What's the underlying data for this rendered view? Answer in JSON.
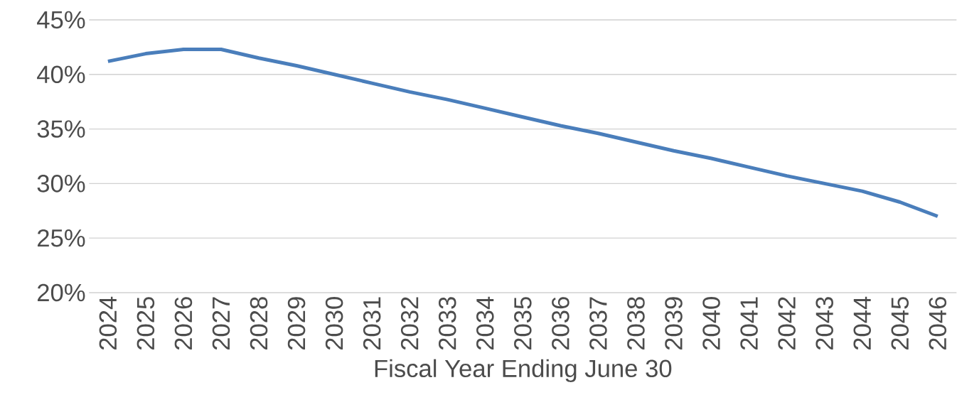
{
  "chart_data": {
    "type": "line",
    "xlabel": "Fiscal Year Ending June 30",
    "categories": [
      "2024",
      "2025",
      "2026",
      "2027",
      "2028",
      "2029",
      "2030",
      "2031",
      "2032",
      "2033",
      "2034",
      "2035",
      "2036",
      "2037",
      "2038",
      "2039",
      "2040",
      "2041",
      "2042",
      "2043",
      "2044",
      "2045",
      "2046"
    ],
    "series": [
      {
        "color": "#4a7ebb",
        "values": [
          41.2,
          41.9,
          42.3,
          42.3,
          41.5,
          40.8,
          40.0,
          39.2,
          38.4,
          37.7,
          36.9,
          36.1,
          35.3,
          34.6,
          33.8,
          33.0,
          32.3,
          31.5,
          30.7,
          30.0,
          29.3,
          28.3,
          27.0
        ]
      }
    ],
    "ylim": [
      20,
      45
    ],
    "yticks": [
      {
        "value": 20,
        "label": "20%"
      },
      {
        "value": 25,
        "label": "25%"
      },
      {
        "value": 30,
        "label": "30%"
      },
      {
        "value": 35,
        "label": "35%"
      },
      {
        "value": 40,
        "label": "40%"
      },
      {
        "value": 45,
        "label": "45%"
      }
    ],
    "grid": "y",
    "marker": "none",
    "line_style": "solid"
  }
}
